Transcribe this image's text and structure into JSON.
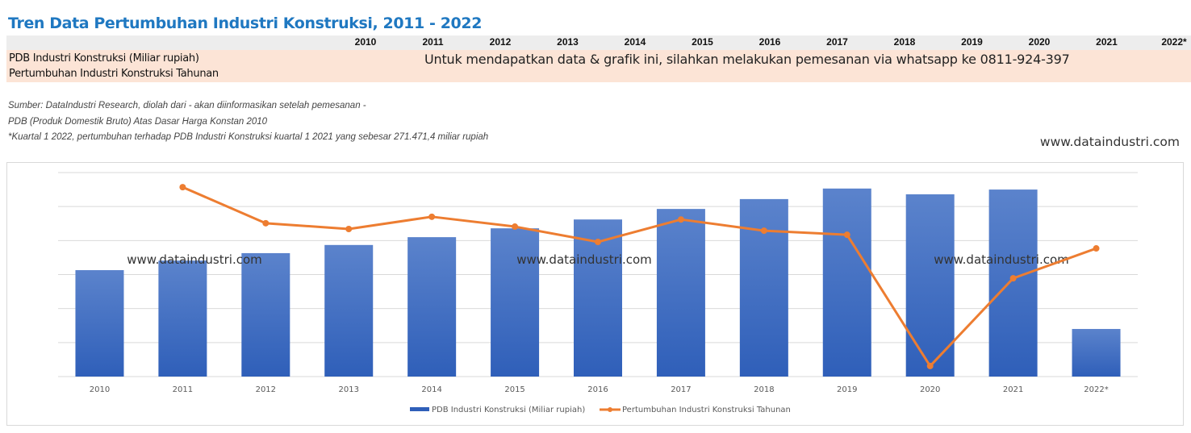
{
  "header": {
    "title": "Tren Data Pertumbuhan Industri Konstruksi, 2011 - 2022"
  },
  "table": {
    "years": [
      "2010",
      "2011",
      "2012",
      "2013",
      "2014",
      "2015",
      "2016",
      "2017",
      "2018",
      "2019",
      "2020",
      "2021",
      "2022*"
    ],
    "rows": [
      {
        "label": "PDB Industri Konstruksi (Miliar rupiah)"
      },
      {
        "label": "Pertumbuhan Industri Konstruksi Tahunan"
      }
    ],
    "cta": "Untuk mendapatkan data & grafik ini, silahkan melakukan pemesanan via whatsapp ke 0811-924-397"
  },
  "notes": [
    "Sumber: DataIndustri Research, diolah dari - akan diinformasikan setelah pemesanan -",
    "PDB (Produk Domestik Bruto) Atas Dasar Harga Konstan 2010",
    "*Kuartal 1 2022, pertumbuhan terhadap PDB Industri Konstruksi kuartal 1 2021 yang sebesar 271.471,4 miliar rupiah"
  ],
  "site": "www.dataindustri.com",
  "watermarks": [
    "www.dataindustri.com",
    "www.dataindustri.com",
    "www.dataindustri.com"
  ],
  "colors": {
    "title": "#1f78c1",
    "bar_top": "#5b83cc",
    "bar_bottom": "#2f5fb9",
    "line": "#ed7d31",
    "header_row": "#ededed",
    "data_row": "#fce4d6",
    "grid": "#d9d9d9"
  },
  "chart_data": {
    "type": "bar+line",
    "title": "",
    "xlabel": "",
    "ylabel": "",
    "y_tick_labels_shown": false,
    "grid": true,
    "gridline_count": 7,
    "value_units": "relative (gridline units; no axis labels shown)",
    "ylim": [
      0,
      6
    ],
    "categories": [
      "2010",
      "2011",
      "2012",
      "2013",
      "2014",
      "2015",
      "2016",
      "2017",
      "2018",
      "2019",
      "2020",
      "2021",
      "2022*"
    ],
    "series": [
      {
        "name": "PDB Industri Konstruksi (Miliar rupiah)",
        "type": "bar",
        "values": [
          3.13,
          3.41,
          3.63,
          3.87,
          4.1,
          4.36,
          4.62,
          4.93,
          5.22,
          5.53,
          5.36,
          5.5,
          1.4
        ]
      },
      {
        "name": "Pertumbuhan Industri Konstruksi Tahunan",
        "type": "line",
        "values": [
          null,
          5.57,
          4.51,
          4.34,
          4.7,
          4.41,
          3.96,
          4.62,
          4.29,
          4.17,
          0.31,
          2.89,
          3.77
        ]
      }
    ],
    "legend": {
      "placement": "bottom",
      "entries": [
        "PDB Industri Konstruksi (Miliar rupiah)",
        "Pertumbuhan Industri Konstruksi Tahunan"
      ]
    }
  }
}
